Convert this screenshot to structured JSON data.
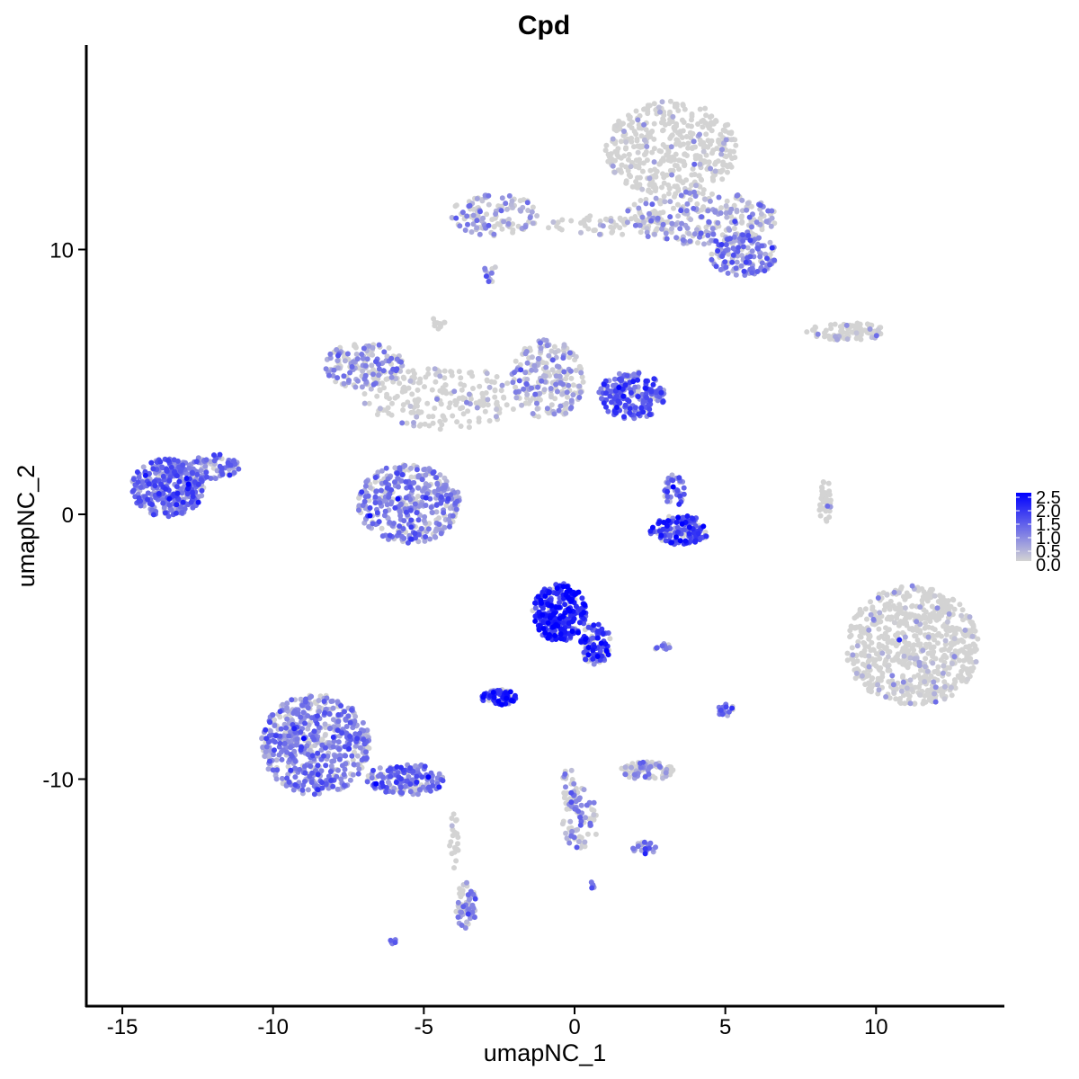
{
  "chart_data": {
    "type": "scatter",
    "title": "Cpd",
    "xlabel": "umapNC_1",
    "ylabel": "umapNC_2",
    "xlim": [
      -16.5,
      14.5
    ],
    "ylim": [
      -18.5,
      17.5
    ],
    "x_ticks": [
      -15,
      -10,
      -5,
      0,
      5,
      10
    ],
    "x_tick_labels": [
      "-15",
      "-10",
      "-5",
      "0",
      "5",
      "10"
    ],
    "y_ticks": [
      -10,
      0,
      10
    ],
    "y_tick_labels": [
      "-10",
      "0",
      "10"
    ],
    "grid": false,
    "color_scale": {
      "low": "#d3d3d3",
      "high": "#0000ff",
      "range": [
        0,
        2.5
      ],
      "legend_ticks": [
        "2.5",
        "2.0",
        "1.5",
        "1.0",
        "0.5",
        "0.0"
      ],
      "legend_placement": "right"
    },
    "clusters": [
      {
        "x": 3.2,
        "y": 13.8,
        "rx": 2.2,
        "ry": 1.8,
        "n": 420,
        "expr": 0.05
      },
      {
        "x": 4.1,
        "y": 11.2,
        "rx": 2.6,
        "ry": 1.0,
        "n": 260,
        "expr": 0.55
      },
      {
        "x": 5.6,
        "y": 9.8,
        "rx": 1.1,
        "ry": 0.8,
        "n": 140,
        "expr": 0.9
      },
      {
        "x": -2.6,
        "y": 11.3,
        "rx": 1.5,
        "ry": 0.8,
        "n": 120,
        "expr": 0.45
      },
      {
        "x": 1.0,
        "y": 10.9,
        "rx": 2.0,
        "ry": 0.4,
        "n": 60,
        "expr": 0.1
      },
      {
        "x": 9.0,
        "y": 6.9,
        "rx": 1.3,
        "ry": 0.35,
        "n": 90,
        "expr": 0.15
      },
      {
        "x": -7.0,
        "y": 5.6,
        "rx": 1.3,
        "ry": 0.9,
        "n": 160,
        "expr": 0.7
      },
      {
        "x": -4.4,
        "y": 4.4,
        "rx": 2.6,
        "ry": 1.2,
        "n": 190,
        "expr": 0.2
      },
      {
        "x": -0.9,
        "y": 5.1,
        "rx": 1.2,
        "ry": 1.5,
        "n": 220,
        "expr": 0.45
      },
      {
        "x": 1.9,
        "y": 4.5,
        "rx": 1.1,
        "ry": 0.9,
        "n": 200,
        "expr": 1.35
      },
      {
        "x": -5.5,
        "y": 0.4,
        "rx": 1.7,
        "ry": 1.5,
        "n": 380,
        "expr": 0.8
      },
      {
        "x": -13.5,
        "y": 1.0,
        "rx": 1.2,
        "ry": 1.1,
        "n": 340,
        "expr": 1.15
      },
      {
        "x": -12.0,
        "y": 1.8,
        "rx": 0.9,
        "ry": 0.5,
        "n": 70,
        "expr": 1.0
      },
      {
        "x": 3.5,
        "y": -0.6,
        "rx": 1.0,
        "ry": 0.55,
        "n": 150,
        "expr": 1.6
      },
      {
        "x": 3.3,
        "y": 0.9,
        "rx": 0.35,
        "ry": 0.6,
        "n": 40,
        "expr": 1.2
      },
      {
        "x": 8.3,
        "y": 0.5,
        "rx": 0.2,
        "ry": 0.9,
        "n": 40,
        "expr": 0.0
      },
      {
        "x": 11.2,
        "y": -5.0,
        "rx": 2.2,
        "ry": 2.3,
        "n": 700,
        "expr": 0.06
      },
      {
        "x": -0.5,
        "y": -3.7,
        "rx": 0.9,
        "ry": 1.1,
        "n": 260,
        "expr": 2.0
      },
      {
        "x": 0.7,
        "y": -4.9,
        "rx": 0.5,
        "ry": 0.8,
        "n": 90,
        "expr": 1.7
      },
      {
        "x": -2.5,
        "y": -6.9,
        "rx": 0.6,
        "ry": 0.3,
        "n": 70,
        "expr": 1.8
      },
      {
        "x": -8.6,
        "y": -8.7,
        "rx": 1.8,
        "ry": 1.9,
        "n": 560,
        "expr": 0.85
      },
      {
        "x": -5.6,
        "y": -10.0,
        "rx": 1.3,
        "ry": 0.6,
        "n": 150,
        "expr": 1.05
      },
      {
        "x": -3.6,
        "y": -14.8,
        "rx": 0.35,
        "ry": 0.9,
        "n": 60,
        "expr": 0.7
      },
      {
        "x": 2.4,
        "y": -9.7,
        "rx": 0.9,
        "ry": 0.35,
        "n": 80,
        "expr": 0.55
      },
      {
        "x": 0.2,
        "y": -11.5,
        "rx": 0.6,
        "ry": 1.2,
        "n": 70,
        "expr": 0.7
      },
      {
        "x": 2.3,
        "y": -12.6,
        "rx": 0.4,
        "ry": 0.25,
        "n": 25,
        "expr": 1.0
      },
      {
        "x": 5.0,
        "y": -7.4,
        "rx": 0.3,
        "ry": 0.25,
        "n": 18,
        "expr": 1.0
      },
      {
        "x": 2.9,
        "y": -5.0,
        "rx": 0.3,
        "ry": 0.12,
        "n": 10,
        "expr": 0.9
      },
      {
        "x": -0.2,
        "y": -10.5,
        "rx": 0.3,
        "ry": 0.9,
        "n": 25,
        "expr": 0.6
      },
      {
        "x": -4.0,
        "y": -12.5,
        "rx": 0.15,
        "ry": 1.2,
        "n": 20,
        "expr": 0.2
      },
      {
        "x": -6.0,
        "y": -16.1,
        "rx": 0.15,
        "ry": 0.12,
        "n": 6,
        "expr": 1.0
      },
      {
        "x": 0.6,
        "y": -14.0,
        "rx": 0.12,
        "ry": 0.12,
        "n": 5,
        "expr": 1.4
      },
      {
        "x": -2.8,
        "y": 9.1,
        "rx": 0.25,
        "ry": 0.35,
        "n": 12,
        "expr": 0.9
      },
      {
        "x": -4.5,
        "y": 7.3,
        "rx": 0.2,
        "ry": 0.3,
        "n": 12,
        "expr": 0.0
      }
    ]
  }
}
